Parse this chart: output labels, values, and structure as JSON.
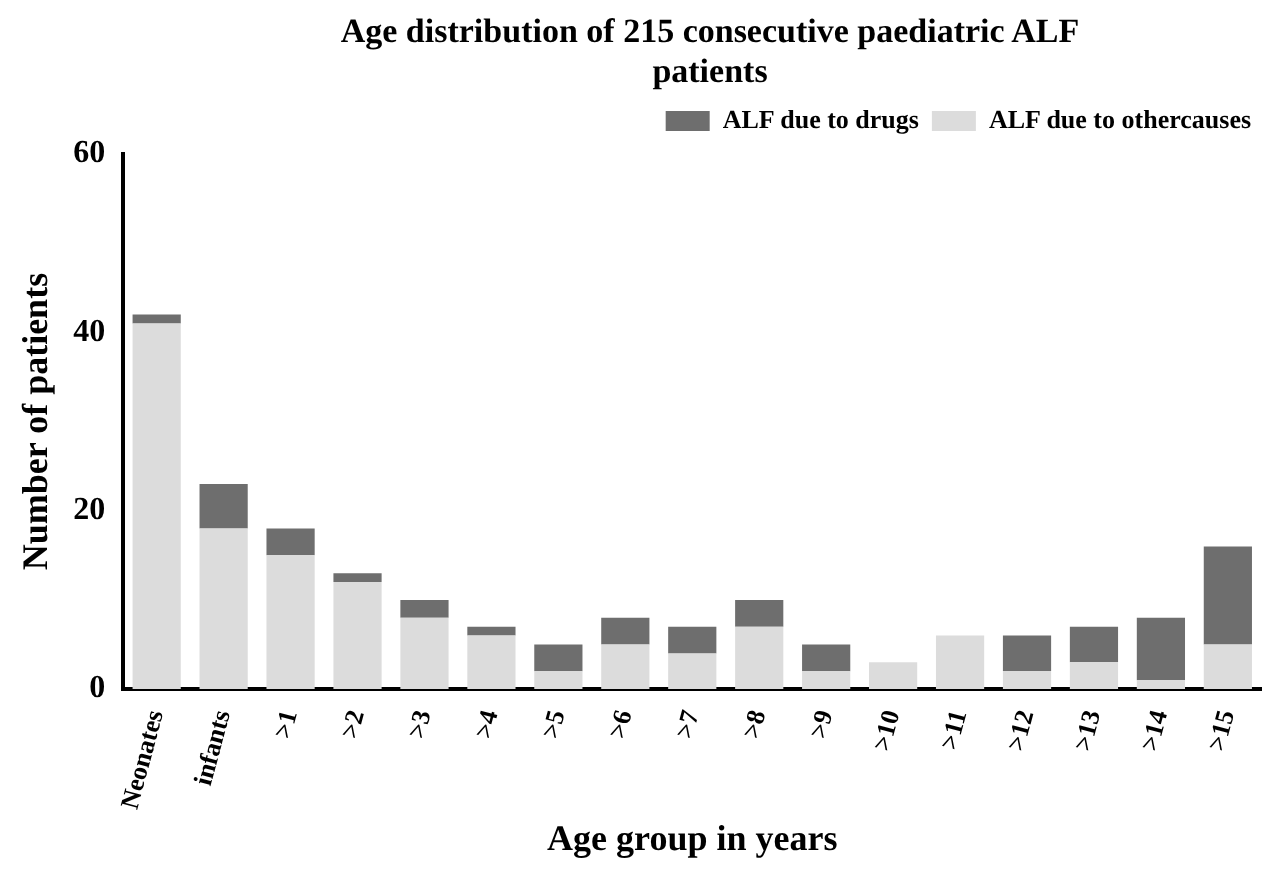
{
  "chart_data": {
    "type": "bar",
    "title": "Age distribution of 215 consecutive paediatric ALF patients",
    "xlabel": "Age group in years",
    "ylabel": "Number of patients",
    "categories": [
      "Neonates",
      "infants",
      ">1",
      ">2",
      ">3",
      ">4",
      ">5",
      ">6",
      ">7",
      ">8",
      ">9",
      ">10",
      ">11",
      ">12",
      ">13",
      ">14",
      ">15"
    ],
    "series": [
      {
        "name": "ALF due to othercauses",
        "color": "#dcdcdc",
        "values": [
          41,
          18,
          15,
          12,
          8,
          6,
          2,
          5,
          4,
          7,
          2,
          3,
          6,
          2,
          3,
          1,
          5
        ]
      },
      {
        "name": "ALF due to drugs",
        "color": "#6e6e6e",
        "values": [
          1,
          5,
          3,
          1,
          2,
          1,
          3,
          3,
          3,
          3,
          3,
          0,
          0,
          4,
          4,
          7,
          11
        ]
      }
    ],
    "stacked": true,
    "ylim": [
      0,
      60
    ],
    "yticks": [
      0,
      20,
      40,
      60
    ],
    "grid": false,
    "legend": "top right"
  }
}
